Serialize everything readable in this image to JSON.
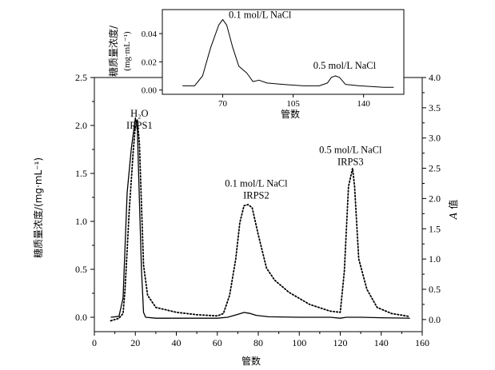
{
  "chart_data": [
    {
      "type": "line",
      "id": "main",
      "xlabel": "管数",
      "ylabel": "糖质量浓度/(mg·mL⁻¹)",
      "y2label_italic": "A",
      "y2label_rest": " 值",
      "xlim": [
        0,
        160
      ],
      "ylim": [
        -0.15,
        2.5
      ],
      "y2lim": [
        -0.2,
        4.0
      ],
      "xticks": [
        0,
        20,
        40,
        60,
        80,
        100,
        120,
        140,
        160
      ],
      "yticks": [
        0.0,
        0.5,
        1.0,
        1.5,
        2.0,
        2.5
      ],
      "ytick_labels": [
        "0.0",
        "0.5",
        "1.0",
        "1.5",
        "2.0",
        "2.5"
      ],
      "y2ticks": [
        0.0,
        0.5,
        1.0,
        1.5,
        2.0,
        2.5,
        3.0,
        3.5,
        4.0
      ],
      "y2tick_labels": [
        "0.0",
        "0.5",
        "1.0",
        "1.5",
        "2.0",
        "2.5",
        "3.0",
        "3.5",
        "4.0"
      ],
      "grid": false,
      "series": [
        {
          "style": "solid",
          "axis": "left",
          "points": [
            [
              8,
              0.0
            ],
            [
              12,
              0.01
            ],
            [
              14,
              0.2
            ],
            [
              16,
              1.3
            ],
            [
              18,
              1.75
            ],
            [
              20,
              2.08
            ],
            [
              21,
              1.95
            ],
            [
              22,
              1.2
            ],
            [
              23,
              0.5
            ],
            [
              24,
              0.05
            ],
            [
              25,
              0.0
            ],
            [
              30,
              -0.01
            ],
            [
              40,
              -0.01
            ],
            [
              60,
              -0.01
            ],
            [
              65,
              0.0
            ],
            [
              70,
              0.03
            ],
            [
              73,
              0.05
            ],
            [
              76,
              0.04
            ],
            [
              79,
              0.02
            ],
            [
              85,
              0.005
            ],
            [
              100,
              0.0
            ],
            [
              115,
              0.0
            ],
            [
              120,
              -0.01
            ],
            [
              123,
              0.0
            ],
            [
              125,
              0.0
            ],
            [
              130,
              0.0
            ],
            [
              140,
              -0.005
            ],
            [
              154,
              -0.01
            ]
          ]
        },
        {
          "style": "dotted",
          "axis": "right",
          "points": [
            [
              8,
              -0.02
            ],
            [
              12,
              0.02
            ],
            [
              14,
              0.1
            ],
            [
              15,
              0.5
            ],
            [
              17,
              1.8
            ],
            [
              19,
              2.8
            ],
            [
              20,
              3.2
            ],
            [
              21,
              3.3
            ],
            [
              22,
              2.9
            ],
            [
              23,
              1.9
            ],
            [
              24,
              0.9
            ],
            [
              26,
              0.4
            ],
            [
              30,
              0.2
            ],
            [
              40,
              0.12
            ],
            [
              50,
              0.08
            ],
            [
              60,
              0.06
            ],
            [
              63,
              0.1
            ],
            [
              66,
              0.4
            ],
            [
              69,
              1.0
            ],
            [
              71,
              1.6
            ],
            [
              73,
              1.88
            ],
            [
              75,
              1.9
            ],
            [
              77,
              1.85
            ],
            [
              80,
              1.4
            ],
            [
              84,
              0.85
            ],
            [
              88,
              0.65
            ],
            [
              95,
              0.45
            ],
            [
              105,
              0.25
            ],
            [
              115,
              0.14
            ],
            [
              120,
              0.12
            ],
            [
              122,
              0.8
            ],
            [
              124,
              2.2
            ],
            [
              126,
              2.5
            ],
            [
              127,
              2.2
            ],
            [
              129,
              1.0
            ],
            [
              133,
              0.5
            ],
            [
              138,
              0.2
            ],
            [
              145,
              0.1
            ],
            [
              154,
              0.05
            ]
          ]
        }
      ],
      "annotations": [
        {
          "lines": [
            "H₂O",
            "IRPS1"
          ],
          "x": 22,
          "y2": 3.35
        },
        {
          "lines": [
            "0.1 mol/L NaCl",
            "IRPS2"
          ],
          "x": 79,
          "y2": 2.2
        },
        {
          "lines": [
            "0.5 mol/L NaCl",
            "IRPS3"
          ],
          "x": 125,
          "y2": 2.75
        }
      ]
    },
    {
      "type": "line",
      "id": "inset",
      "xlabel": "管数",
      "ylabel_line1": "糖质量浓度/",
      "ylabel_line2": "(mg·mL⁻¹)",
      "xlim": [
        40,
        160
      ],
      "ylim": [
        -0.003,
        0.057
      ],
      "xticks": [
        70,
        105,
        140
      ],
      "xtick_labels": [
        "70",
        "105",
        "140"
      ],
      "yticks": [
        0.0,
        0.02,
        0.04
      ],
      "ytick_labels": [
        "0.00",
        "0.02",
        "0.04"
      ],
      "grid": false,
      "series": [
        {
          "style": "solid",
          "points": [
            [
              50,
              0.003
            ],
            [
              56,
              0.003
            ],
            [
              60,
              0.01
            ],
            [
              64,
              0.03
            ],
            [
              68,
              0.046
            ],
            [
              70,
              0.05
            ],
            [
              72,
              0.046
            ],
            [
              75,
              0.03
            ],
            [
              78,
              0.017
            ],
            [
              82,
              0.012
            ],
            [
              85,
              0.006
            ],
            [
              88,
              0.007
            ],
            [
              92,
              0.005
            ],
            [
              100,
              0.004
            ],
            [
              110,
              0.003
            ],
            [
              118,
              0.003
            ],
            [
              122,
              0.005
            ],
            [
              124,
              0.009
            ],
            [
              126,
              0.01
            ],
            [
              128,
              0.009
            ],
            [
              131,
              0.004
            ],
            [
              138,
              0.003
            ],
            [
              150,
              0.002
            ],
            [
              155,
              0.002
            ]
          ]
        }
      ],
      "annotations": [
        {
          "text": "0.1 mol/L NaCl",
          "x": 73,
          "y": 0.051
        },
        {
          "text": "0.5 mol/L NaCl",
          "x": 115,
          "y": 0.015
        }
      ]
    }
  ]
}
